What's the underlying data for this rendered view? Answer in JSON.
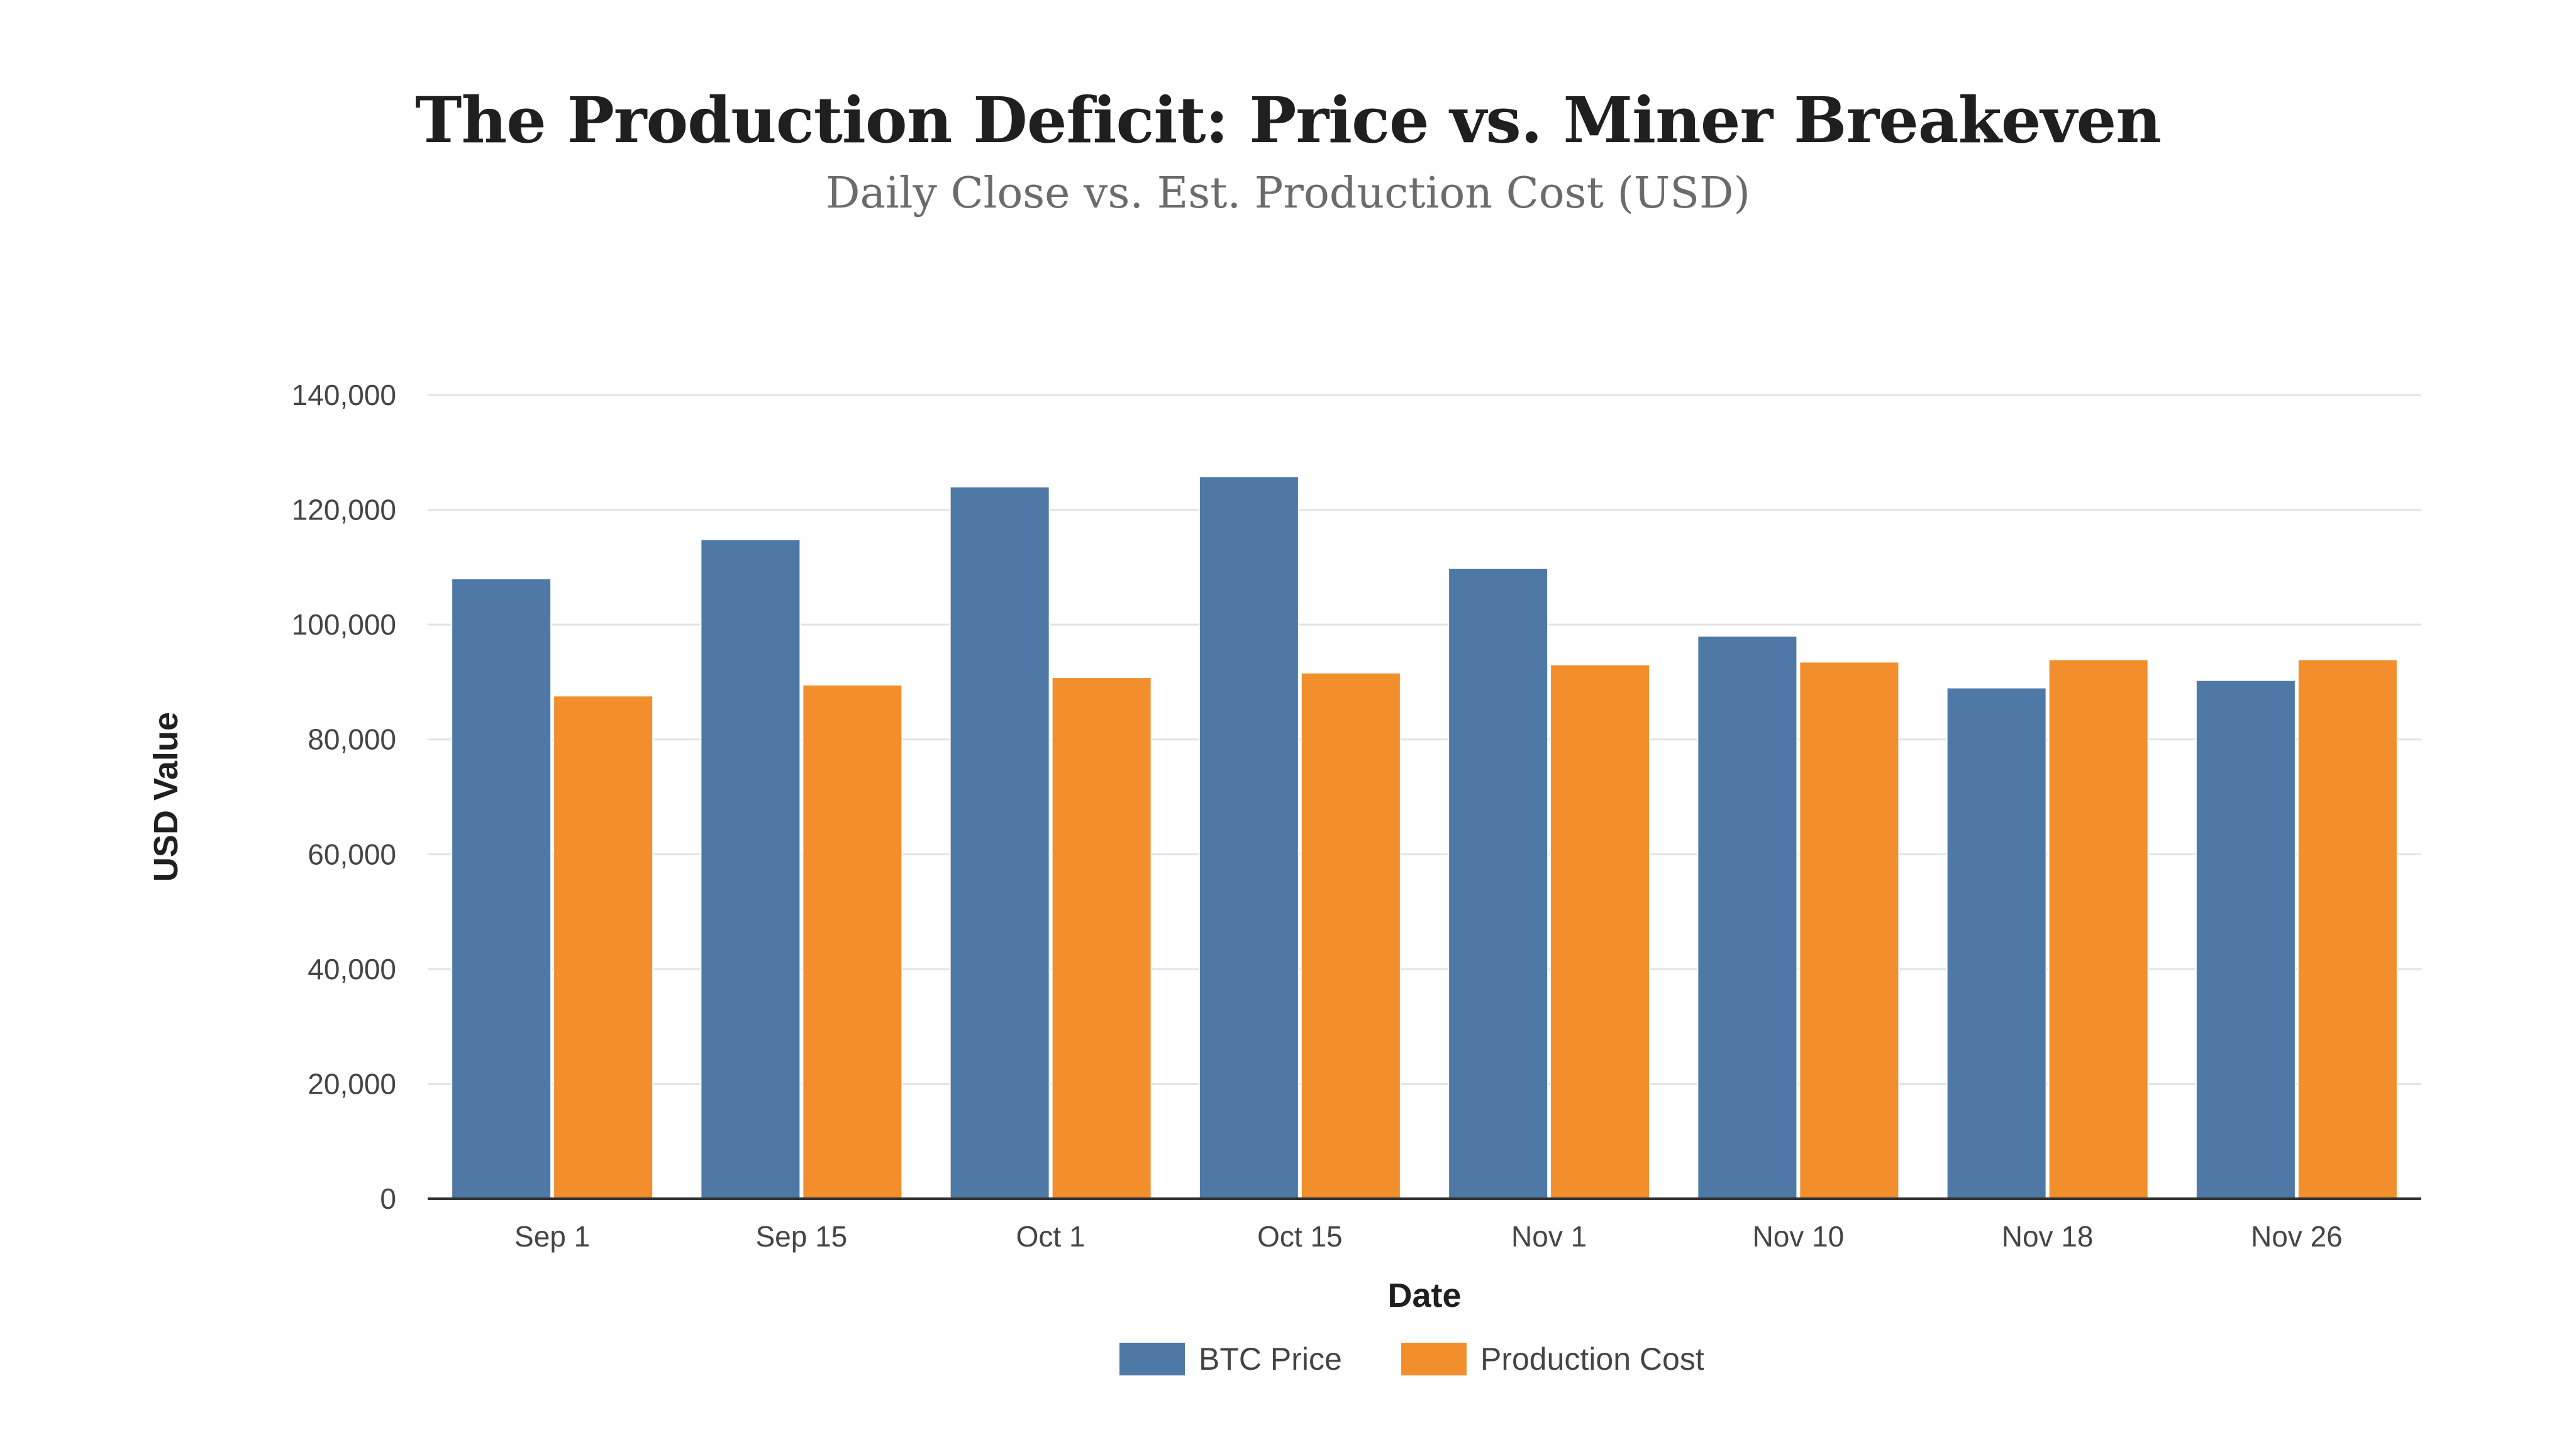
{
  "chart_data": {
    "type": "bar",
    "title": "The Production Deficit: Price vs. Miner Breakeven",
    "subtitle": "Daily Close vs. Est. Production Cost (USD)",
    "xlabel": "Date",
    "ylabel": "USD Value",
    "ylim": [
      0,
      140000
    ],
    "yticks": [
      0,
      20000,
      40000,
      60000,
      80000,
      100000,
      120000,
      140000
    ],
    "ytick_labels": [
      "0",
      "20,000",
      "40,000",
      "60,000",
      "80,000",
      "100,000",
      "120,000",
      "140,000"
    ],
    "categories": [
      "Sep 1",
      "Sep 15",
      "Oct 1",
      "Oct 15",
      "Nov 1",
      "Nov 10",
      "Nov 18",
      "Nov 26"
    ],
    "series": [
      {
        "name": "BTC Price",
        "color": "#4e79a7",
        "values": [
          108000,
          114800,
          124000,
          125800,
          109800,
          98000,
          89000,
          90300
        ]
      },
      {
        "name": "Production Cost",
        "color": "#f28e2b",
        "values": [
          87600,
          89500,
          90800,
          91600,
          93000,
          93500,
          93900,
          93900
        ]
      }
    ],
    "grid": true,
    "legend": "bottom-center"
  }
}
